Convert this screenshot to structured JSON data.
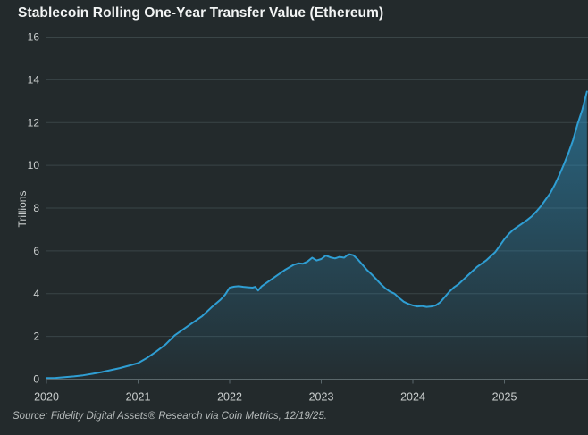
{
  "header": {
    "title": "Stablecoin Rolling One-Year Transfer Value (Ethereum)"
  },
  "footer": {
    "source": "Source: Fidelity Digital Assets® Research via Coin Metrics, 12/19/25."
  },
  "colors": {
    "background": "#232a2c",
    "title_text": "#f2f4f4",
    "tick_text": "#c9cdcd",
    "gridline": "#3a4547",
    "axis_line": "#5a676b",
    "line": "#2f9ed3",
    "fill_top": "rgba(47,158,211,0.62)",
    "fill_bottom": "rgba(47,158,211,0.03)"
  },
  "chart_data": {
    "type": "area",
    "title": "Stablecoin Rolling One-Year Transfer Value (Ethereum)",
    "xlabel": "",
    "ylabel": "Trillions",
    "xlim": [
      2020,
      2025.9
    ],
    "ylim": [
      0,
      16
    ],
    "yticks": [
      0,
      2,
      4,
      6,
      8,
      10,
      12,
      14,
      16
    ],
    "xticks": [
      2020,
      2021,
      2022,
      2023,
      2024,
      2025
    ],
    "xtick_labels": [
      "2020",
      "2021",
      "2022",
      "2023",
      "2024",
      "2025"
    ],
    "grid": true,
    "legend": false,
    "x": [
      2020.0,
      2020.1,
      2020.2,
      2020.3,
      2020.4,
      2020.5,
      2020.6,
      2020.7,
      2020.8,
      2020.9,
      2021.0,
      2021.1,
      2021.2,
      2021.3,
      2021.4,
      2021.5,
      2021.6,
      2021.7,
      2021.8,
      2021.9,
      2021.95,
      2022.0,
      2022.05,
      2022.1,
      2022.15,
      2022.2,
      2022.25,
      2022.28,
      2022.31,
      2022.35,
      2022.4,
      2022.5,
      2022.6,
      2022.7,
      2022.75,
      2022.8,
      2022.85,
      2022.9,
      2022.95,
      2023.0,
      2023.05,
      2023.1,
      2023.15,
      2023.2,
      2023.25,
      2023.3,
      2023.35,
      2023.4,
      2023.45,
      2023.5,
      2023.55,
      2023.6,
      2023.65,
      2023.7,
      2023.75,
      2023.8,
      2023.85,
      2023.9,
      2023.95,
      2024.0,
      2024.05,
      2024.1,
      2024.15,
      2024.2,
      2024.25,
      2024.3,
      2024.35,
      2024.4,
      2024.45,
      2024.5,
      2024.55,
      2024.6,
      2024.65,
      2024.7,
      2024.75,
      2024.8,
      2024.85,
      2024.9,
      2024.95,
      2025.0,
      2025.05,
      2025.1,
      2025.15,
      2025.2,
      2025.25,
      2025.3,
      2025.35,
      2025.4,
      2025.45,
      2025.5,
      2025.55,
      2025.6,
      2025.65,
      2025.7,
      2025.75,
      2025.8,
      2025.85,
      2025.9
    ],
    "y": [
      0.05,
      0.06,
      0.09,
      0.13,
      0.18,
      0.25,
      0.33,
      0.42,
      0.52,
      0.63,
      0.75,
      1.0,
      1.3,
      1.62,
      2.05,
      2.35,
      2.65,
      2.95,
      3.35,
      3.72,
      3.95,
      4.28,
      4.33,
      4.35,
      4.32,
      4.3,
      4.28,
      4.32,
      4.15,
      4.35,
      4.5,
      4.8,
      5.1,
      5.35,
      5.42,
      5.4,
      5.5,
      5.68,
      5.55,
      5.62,
      5.78,
      5.7,
      5.65,
      5.72,
      5.68,
      5.85,
      5.8,
      5.6,
      5.35,
      5.1,
      4.9,
      4.68,
      4.45,
      4.25,
      4.1,
      4.0,
      3.8,
      3.62,
      3.52,
      3.45,
      3.4,
      3.42,
      3.38,
      3.4,
      3.45,
      3.6,
      3.85,
      4.1,
      4.3,
      4.45,
      4.65,
      4.85,
      5.05,
      5.25,
      5.4,
      5.55,
      5.75,
      5.95,
      6.25,
      6.55,
      6.8,
      7.0,
      7.15,
      7.3,
      7.45,
      7.62,
      7.85,
      8.1,
      8.4,
      8.7,
      9.1,
      9.55,
      10.05,
      10.6,
      11.2,
      11.95,
      12.6,
      13.45
    ]
  }
}
